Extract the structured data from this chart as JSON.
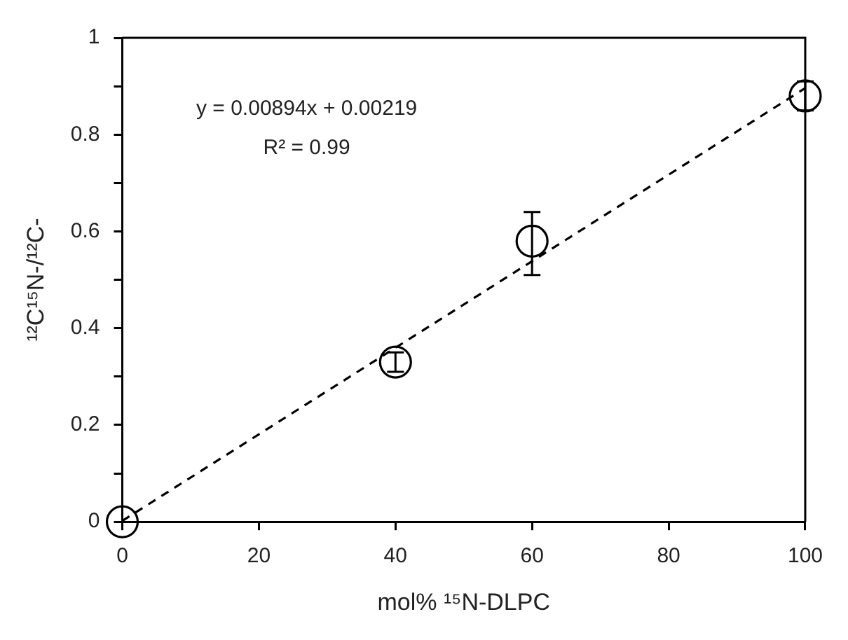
{
  "chart_data": {
    "type": "scatter",
    "xlabel": "mol% ¹⁵N-DLPC",
    "ylabel": "¹²C¹⁵N-/¹²C-",
    "xlim": [
      0,
      100
    ],
    "xticks": [
      0,
      20,
      40,
      60,
      80,
      100
    ],
    "ylim": [
      0,
      1
    ],
    "yticks": [
      0,
      {
        "value": 0.1,
        "label": null
      },
      0.2,
      {
        "value": 0.3,
        "label": null
      },
      0.4,
      {
        "value": 0.5,
        "label": null
      },
      0.6,
      {
        "value": 0.7,
        "label": null
      },
      0.8,
      {
        "value": 0.9,
        "label": null
      },
      1
    ],
    "grid": false,
    "marker": "circle",
    "series": [
      {
        "color": "#000000",
        "x": [
          0,
          40,
          60,
          100
        ],
        "values": [
          0,
          0.33,
          0.58,
          0.88
        ],
        "errors": [
          null,
          0.02,
          [
            0.51,
            0.64
          ],
          0.03
        ]
      },
      {
        "type": "line",
        "color": "#000000",
        "line_style": "dashed",
        "marker": "none",
        "x": [
          0,
          100
        ],
        "values": [
          0.002,
          0.896
        ]
      }
    ],
    "annotations": [
      "y = 0.00894x + 0.00219",
      "R² = 0.99"
    ]
  }
}
